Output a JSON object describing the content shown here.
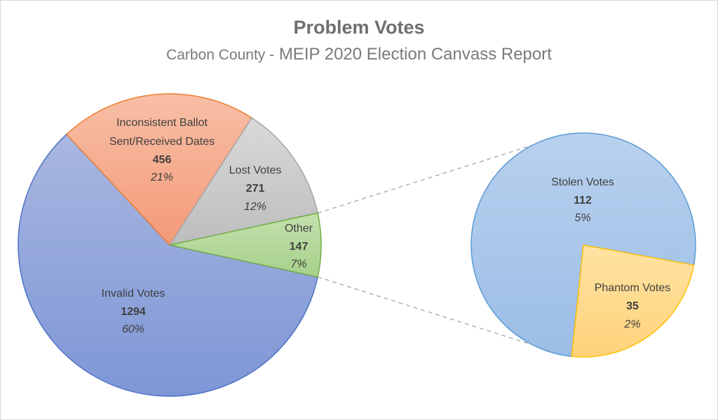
{
  "title": "Problem Votes",
  "subtitle_county": "Carbon County -",
  "subtitle_report": "MEIP 2020 Election Canvass Report",
  "chart_data": {
    "type": "pie",
    "title": "Problem Votes",
    "subtitle": "Carbon County - MEIP 2020 Election Canvass Report",
    "variant": "pie-of-pie",
    "main_pie": {
      "slices": [
        {
          "key": "invalid",
          "label": "Invalid Votes",
          "value": 1294,
          "percent": "60%",
          "color": "#8ea4d9"
        },
        {
          "key": "inconsistent",
          "label_lines": [
            "Inconsistent Ballot",
            "Sent/Received Dates"
          ],
          "value": 456,
          "percent": "21%",
          "color": "#f4a98a"
        },
        {
          "key": "lost",
          "label": "Lost Votes",
          "value": 271,
          "percent": "12%",
          "color": "#c9c9c9"
        },
        {
          "key": "other",
          "label": "Other",
          "value": 147,
          "percent": "7%",
          "color": "#b5d99a"
        }
      ]
    },
    "secondary_pie": {
      "of": "Other",
      "slices": [
        {
          "key": "stolen",
          "label": "Stolen Votes",
          "value": 112,
          "percent": "5%",
          "color": "#a8c6e8"
        },
        {
          "key": "phantom",
          "label": "Phantom Votes",
          "value": 35,
          "percent": "2%",
          "color": "#ffd98a"
        }
      ]
    },
    "colors": {
      "invalid_edge": "#4d72c4",
      "inconsistent_edge": "#ed7d31",
      "lost_edge": "#a5a5a5",
      "other_edge": "#70ad47",
      "stolen_edge": "#5b9bd5",
      "phantom_edge": "#ffc000",
      "connector": "#a6a6a6"
    }
  }
}
